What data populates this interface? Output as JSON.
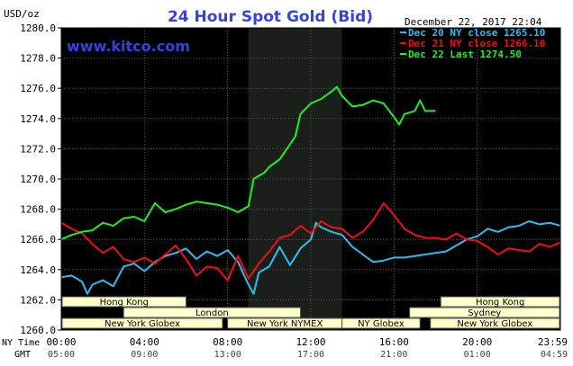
{
  "header": {
    "units": "USD/oz",
    "title": "24 Hour Spot Gold (Bid)",
    "timestamp": "December 22, 2017 22:04",
    "watermark": "www.kitco.com"
  },
  "bottom_labels": {
    "ny_time": "NY Time",
    "gmt": "GMT"
  },
  "sessions": [
    {
      "label": "Hong Kong",
      "row": 0,
      "start": -1.5,
      "end": 6.0
    },
    {
      "label": "Hong Kong",
      "row": 0,
      "start": 18.25,
      "end": 24.25
    },
    {
      "label": "London",
      "row": 1,
      "start": 3.0,
      "end": 11.5
    },
    {
      "label": "Sydney",
      "row": 1,
      "start": 16.75,
      "end": 24.25
    },
    {
      "label": "New York Globex",
      "row": 2,
      "start": -1.5,
      "end": 7.75
    },
    {
      "label": "New York NYMEX",
      "row": 2,
      "start": 8.0,
      "end": 13.5
    },
    {
      "label": "NY Globex",
      "row": 2,
      "start": 13.5,
      "end": 17.25
    },
    {
      "label": "New York Globex",
      "row": 2,
      "start": 17.75,
      "end": 24.25
    }
  ],
  "colors": {
    "plot_bg": "#000000",
    "highlight_bg": "#1a1f1a",
    "grid": "#5a5a5a",
    "dec20": "#33bbee",
    "dec21": "#ee1111",
    "dec22": "#22ee22",
    "title": "#3344dd",
    "session_bg": "#ffffcc",
    "text": "#000000"
  },
  "chart_data": {
    "type": "line",
    "title": "24 Hour Spot Gold (Bid)",
    "ylabel": "USD/oz",
    "ylim": [
      1260.0,
      1280.0
    ],
    "xlim": [
      0,
      24
    ],
    "highlight_x": [
      9.0,
      13.5
    ],
    "grid": true,
    "legend_position": "top-right",
    "yticks": [
      "1260.0",
      "1262.0",
      "1264.0",
      "1266.0",
      "1268.0",
      "1270.0",
      "1272.0",
      "1274.0",
      "1276.0",
      "1278.0",
      "1280.0"
    ],
    "xticks": [
      {
        "x": 0,
        "ny": "00:00",
        "gmt": "05:00"
      },
      {
        "x": 4,
        "ny": "04:00",
        "gmt": "09:00"
      },
      {
        "x": 8,
        "ny": "08:00",
        "gmt": "13:00"
      },
      {
        "x": 12,
        "ny": "12:00",
        "gmt": "17:00"
      },
      {
        "x": 16,
        "ny": "16:00",
        "gmt": "21:00"
      },
      {
        "x": 20,
        "ny": "20:00",
        "gmt": "01:00"
      },
      {
        "x": 24,
        "ny": "23:59",
        "gmt": "04:59"
      }
    ],
    "series": [
      {
        "name": "Dec 20 NY close 1265.10",
        "color": "#33bbee",
        "x": [
          0,
          0.5,
          1,
          1.25,
          1.5,
          2,
          2.5,
          3,
          3.5,
          4,
          4.5,
          5,
          5.5,
          6,
          6.5,
          7,
          7.5,
          8,
          8.5,
          9,
          9.25,
          9.5,
          10,
          10.5,
          11,
          11.5,
          12,
          12.25,
          12.5,
          13,
          13.5,
          14,
          14.5,
          15,
          15.5,
          16,
          16.5,
          17,
          17.5,
          18,
          18.5,
          19,
          19.5,
          20,
          20.5,
          21,
          21.5,
          22,
          22.5,
          23,
          23.5,
          24
        ],
        "y": [
          1263.5,
          1263.6,
          1263.2,
          1262.4,
          1263.0,
          1263.3,
          1262.9,
          1264.2,
          1264.4,
          1263.9,
          1264.5,
          1264.9,
          1265.1,
          1265.4,
          1264.7,
          1265.2,
          1264.9,
          1265.3,
          1264.5,
          1263.0,
          1262.4,
          1263.8,
          1264.2,
          1265.5,
          1264.3,
          1265.4,
          1266.0,
          1267.1,
          1266.8,
          1266.5,
          1266.3,
          1265.5,
          1265.0,
          1264.5,
          1264.6,
          1264.8,
          1264.8,
          1264.9,
          1265.0,
          1265.1,
          1265.2,
          1265.6,
          1266.0,
          1266.2,
          1266.7,
          1266.5,
          1266.8,
          1266.9,
          1267.2,
          1267.0,
          1267.1,
          1266.9
        ]
      },
      {
        "name": "Dec 21 NY close 1266.10",
        "color": "#ee1111",
        "x": [
          0,
          0.5,
          1,
          1.5,
          2,
          2.5,
          3,
          3.5,
          4,
          4.5,
          5,
          5.5,
          6,
          6.5,
          7,
          7.5,
          8,
          8.5,
          9,
          9.5,
          10,
          10.5,
          11,
          11.5,
          12,
          12.5,
          13,
          13.5,
          14,
          14.5,
          15,
          15.5,
          16,
          16.5,
          17,
          17.5,
          18,
          18.5,
          19,
          19.5,
          20,
          20.5,
          21,
          21.5,
          22,
          22.5,
          23,
          23.5,
          24
        ],
        "y": [
          1267.1,
          1266.7,
          1266.4,
          1265.7,
          1265.1,
          1265.5,
          1264.7,
          1264.5,
          1264.8,
          1264.4,
          1265.0,
          1265.6,
          1264.7,
          1263.6,
          1264.2,
          1264.1,
          1263.3,
          1264.9,
          1263.4,
          1264.4,
          1265.2,
          1266.1,
          1266.3,
          1266.9,
          1266.4,
          1267.2,
          1266.8,
          1266.7,
          1266.1,
          1266.5,
          1267.3,
          1268.4,
          1267.6,
          1266.7,
          1266.3,
          1266.1,
          1266.1,
          1266.0,
          1266.4,
          1266.0,
          1265.9,
          1265.5,
          1265.0,
          1265.4,
          1265.3,
          1265.2,
          1265.7,
          1265.5,
          1265.8
        ]
      },
      {
        "name": "Dec 22 Last 1274.50",
        "color": "#22ee22",
        "x": [
          0,
          0.5,
          1,
          1.5,
          2,
          2.5,
          3,
          3.5,
          4,
          4.5,
          5,
          5.5,
          6,
          6.5,
          7,
          7.5,
          8,
          8.5,
          9,
          9.25,
          9.5,
          9.75,
          10,
          10.5,
          11,
          11.25,
          11.5,
          12,
          12.5,
          13,
          13.25,
          13.5,
          14,
          14.5,
          15,
          15.5,
          16,
          16.25,
          16.5,
          17,
          17.25,
          17.5,
          18
        ],
        "y": [
          1266.0,
          1266.3,
          1266.5,
          1266.6,
          1267.1,
          1266.9,
          1267.4,
          1267.5,
          1267.2,
          1268.4,
          1267.8,
          1268.0,
          1268.3,
          1268.5,
          1268.4,
          1268.3,
          1268.1,
          1267.8,
          1268.2,
          1270.0,
          1270.2,
          1270.4,
          1270.8,
          1271.3,
          1272.3,
          1272.8,
          1274.3,
          1275.0,
          1275.3,
          1275.8,
          1276.1,
          1275.5,
          1274.8,
          1274.9,
          1275.2,
          1275.0,
          1274.1,
          1273.6,
          1274.3,
          1274.5,
          1275.2,
          1274.5,
          1274.5
        ]
      }
    ]
  }
}
